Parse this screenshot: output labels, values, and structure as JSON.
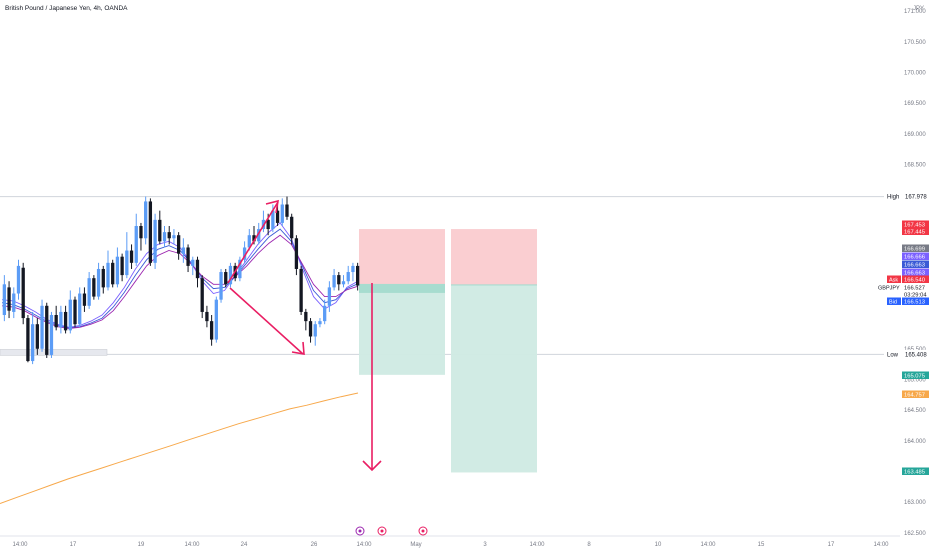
{
  "header": {
    "title": "British Pound / Japanese Yen, 4h, OANDA"
  },
  "currency": "JPY",
  "colors": {
    "bull": "#5b9cf6",
    "bear": "#131722",
    "ma1": "#7b61ff",
    "ma2": "#3a5ad6",
    "ma3": "#9c27b0",
    "ma_long": "#f7a84a",
    "arrow": "#e91e63",
    "stop_zone": "#f9c9cc",
    "target_zone": "#cfeae3",
    "entry_band": "#a7dccf",
    "grid_line": "#d1d4dc",
    "axis_text": "#787b86"
  },
  "price_axis": {
    "ticks": [
      "171.000",
      "170.500",
      "170.000",
      "169.500",
      "169.000",
      "168.500",
      "165.500",
      "165.000",
      "164.500",
      "164.000",
      "163.500",
      "163.000",
      "162.500"
    ]
  },
  "time_axis": {
    "ticks": [
      "14:00",
      "17",
      "19",
      "14:00",
      "24",
      "26",
      "14:00",
      "May",
      "3",
      "14:00",
      "8",
      "10",
      "14:00",
      "15",
      "17",
      "14:00"
    ]
  },
  "levels": {
    "high": {
      "label": "High",
      "value": "167.978"
    },
    "low": {
      "label": "Low",
      "value": "165.408"
    }
  },
  "price_labels": [
    {
      "text": "167.453",
      "bg": "#f23645",
      "fg": "#ffffff"
    },
    {
      "text": "167.445",
      "bg": "#f23645",
      "fg": "#ffffff"
    },
    {
      "text": "166.699",
      "bg": "#787b86",
      "fg": "#ffffff"
    },
    {
      "text": "166.666",
      "bg": "#7b61ff",
      "fg": "#ffffff"
    },
    {
      "text": "166.663",
      "bg": "#3a5ad6",
      "fg": "#ffffff"
    },
    {
      "text": "166.663",
      "bg": "#7b61ff",
      "fg": "#ffffff"
    },
    {
      "text": "166.540",
      "bg": "#f23645",
      "fg": "#ffffff"
    },
    {
      "text": "166.527",
      "bg": "#ffffff",
      "fg": "#131722"
    },
    {
      "text": "03:29:04",
      "bg": "#ffffff",
      "fg": "#131722"
    },
    {
      "text": "166.513",
      "bg": "#2962ff",
      "fg": "#ffffff"
    },
    {
      "text": "165.075",
      "bg": "#26a69a",
      "fg": "#ffffff"
    },
    {
      "text": "164.757",
      "bg": "#f7a84a",
      "fg": "#ffffff"
    },
    {
      "text": "163.485",
      "bg": "#26a69a",
      "fg": "#ffffff"
    }
  ],
  "tags": {
    "ask": "Ask",
    "bid": "Bid",
    "symbol": "GBPJPY"
  },
  "chart_data": {
    "type": "candlestick",
    "title": "British Pound / Japanese Yen, 4h, OANDA",
    "symbol": "GBPJPY",
    "timeframe": "4h",
    "y_unit": "JPY",
    "ylim": [
      162.45,
      171.1
    ],
    "x_tick_labels": [
      "14:00",
      "17",
      "19",
      "14:00",
      "24",
      "26",
      "14:00",
      "May",
      "3",
      "14:00",
      "8",
      "10",
      "14:00",
      "15",
      "17",
      "14:00"
    ],
    "candles": [
      [
        166.05,
        166.55,
        166.7,
        165.95
      ],
      [
        166.5,
        166.12,
        166.6,
        166.0
      ],
      [
        166.1,
        166.4,
        166.5,
        166.0
      ],
      [
        166.4,
        166.85,
        166.95,
        166.3
      ],
      [
        166.82,
        166.0,
        166.9,
        165.9
      ],
      [
        166.0,
        165.3,
        166.05,
        165.28
      ],
      [
        165.3,
        165.9,
        166.1,
        165.25
      ],
      [
        165.9,
        165.5,
        166.0,
        165.4
      ],
      [
        165.5,
        166.2,
        166.3,
        165.45
      ],
      [
        166.2,
        165.4,
        166.25,
        165.35
      ],
      [
        165.4,
        166.05,
        166.1,
        165.35
      ],
      [
        166.05,
        165.85,
        166.2,
        165.8
      ],
      [
        165.85,
        166.1,
        166.2,
        165.75
      ],
      [
        166.1,
        165.8,
        166.2,
        165.75
      ],
      [
        165.8,
        166.3,
        166.45,
        165.75
      ],
      [
        166.3,
        165.9,
        166.35,
        165.85
      ],
      [
        165.9,
        166.4,
        166.5,
        165.85
      ],
      [
        166.4,
        166.2,
        166.5,
        166.1
      ],
      [
        166.2,
        166.65,
        166.75,
        166.15
      ],
      [
        166.65,
        166.35,
        166.7,
        166.3
      ],
      [
        166.35,
        166.8,
        166.9,
        166.3
      ],
      [
        166.8,
        166.5,
        166.85,
        166.4
      ],
      [
        166.5,
        166.9,
        167.1,
        166.45
      ],
      [
        166.9,
        166.55,
        166.95,
        166.5
      ],
      [
        166.55,
        167.0,
        167.15,
        166.5
      ],
      [
        167.0,
        166.7,
        167.05,
        166.6
      ],
      [
        166.7,
        167.1,
        167.4,
        166.65
      ],
      [
        167.1,
        166.9,
        167.2,
        166.8
      ],
      [
        166.9,
        167.5,
        167.7,
        166.85
      ],
      [
        167.5,
        167.3,
        167.55,
        167.1
      ],
      [
        167.3,
        167.9,
        167.98,
        167.2
      ],
      [
        167.9,
        166.9,
        167.95,
        166.85
      ],
      [
        166.9,
        167.6,
        167.7,
        166.8
      ],
      [
        167.6,
        167.25,
        167.75,
        167.2
      ],
      [
        167.25,
        167.4,
        167.5,
        167.15
      ],
      [
        167.4,
        167.3,
        167.5,
        167.2
      ],
      [
        167.3,
        167.35,
        167.45,
        167.2
      ],
      [
        167.35,
        167.05,
        167.4,
        166.95
      ],
      [
        167.05,
        167.15,
        167.3,
        166.9
      ],
      [
        167.15,
        166.85,
        167.2,
        166.75
      ],
      [
        166.85,
        166.95,
        167.0,
        166.7
      ],
      [
        166.95,
        166.65,
        167.0,
        166.5
      ],
      [
        166.65,
        166.1,
        166.7,
        166.0
      ],
      [
        166.1,
        165.95,
        166.2,
        165.85
      ],
      [
        165.95,
        165.65,
        166.05,
        165.55
      ],
      [
        165.65,
        166.3,
        166.35,
        165.6
      ],
      [
        166.3,
        166.75,
        166.8,
        166.25
      ],
      [
        166.75,
        166.55,
        166.8,
        166.5
      ],
      [
        166.55,
        166.85,
        166.9,
        166.5
      ],
      [
        166.85,
        166.65,
        166.9,
        166.6
      ],
      [
        166.65,
        166.95,
        167.0,
        166.6
      ],
      [
        166.95,
        167.15,
        167.25,
        166.9
      ],
      [
        167.15,
        167.35,
        167.45,
        167.1
      ],
      [
        167.35,
        167.25,
        167.5,
        167.2
      ],
      [
        167.25,
        167.45,
        167.55,
        167.2
      ],
      [
        167.45,
        167.6,
        167.75,
        167.4
      ],
      [
        167.6,
        167.45,
        167.7,
        167.35
      ],
      [
        167.45,
        167.75,
        167.85,
        167.4
      ],
      [
        167.75,
        167.55,
        167.85,
        167.5
      ],
      [
        167.55,
        167.85,
        167.95,
        167.5
      ],
      [
        167.85,
        167.65,
        167.98,
        167.6
      ],
      [
        167.65,
        167.3,
        167.7,
        167.2
      ],
      [
        167.3,
        166.8,
        167.35,
        166.7
      ],
      [
        166.8,
        166.1,
        166.85,
        166.05
      ],
      [
        166.1,
        165.95,
        166.15,
        165.8
      ],
      [
        165.95,
        165.7,
        166.0,
        165.6
      ],
      [
        165.7,
        165.9,
        165.95,
        165.55
      ],
      [
        165.9,
        165.95,
        166.0,
        165.85
      ],
      [
        165.95,
        166.2,
        166.3,
        165.9
      ],
      [
        166.2,
        166.5,
        166.6,
        166.1
      ],
      [
        166.5,
        166.7,
        166.8,
        166.45
      ],
      [
        166.7,
        166.55,
        166.75,
        166.45
      ],
      [
        166.55,
        166.6,
        166.7,
        166.5
      ],
      [
        166.6,
        166.75,
        166.85,
        166.55
      ],
      [
        166.75,
        166.85,
        166.9,
        166.6
      ],
      [
        166.85,
        166.53,
        166.9,
        166.45
      ]
    ],
    "moving_averages": [
      {
        "points": [
          166.3,
          166.28,
          166.2,
          166.1,
          165.98,
          165.9,
          165.85,
          165.88,
          165.95,
          166.05,
          166.25,
          166.5,
          166.8,
          167.05,
          167.2,
          167.25,
          167.15,
          166.9,
          166.6,
          166.4,
          166.45,
          166.7,
          166.95,
          167.2,
          167.4,
          167.55,
          167.3,
          166.8,
          166.35,
          166.15,
          166.25,
          166.5,
          166.6
        ]
      },
      {
        "points": [
          166.25,
          166.22,
          166.15,
          166.05,
          165.95,
          165.88,
          165.84,
          165.86,
          165.92,
          166.0,
          166.18,
          166.42,
          166.7,
          166.95,
          167.12,
          167.18,
          167.1,
          166.9,
          166.65,
          166.48,
          166.5,
          166.68,
          166.9,
          167.12,
          167.32,
          167.45,
          167.25,
          166.85,
          166.45,
          166.25,
          166.3,
          166.48,
          166.56
        ]
      },
      {
        "points": [
          166.2,
          166.18,
          166.12,
          166.02,
          165.93,
          165.86,
          165.83,
          165.85,
          165.9,
          165.97,
          166.12,
          166.35,
          166.6,
          166.85,
          167.02,
          167.1,
          167.05,
          166.88,
          166.68,
          166.55,
          166.55,
          166.68,
          166.85,
          167.05,
          167.22,
          167.35,
          167.2,
          166.88,
          166.55,
          166.35,
          166.35,
          166.46,
          166.52
        ]
      }
    ],
    "long_moving_average": [
      162.98,
      163.08,
      163.18,
      163.28,
      163.38,
      163.47,
      163.56,
      163.65,
      163.74,
      163.83,
      163.92,
      164.01,
      164.1,
      164.19,
      164.28,
      164.36,
      164.44,
      164.52,
      164.58,
      164.65,
      164.72,
      164.78
    ],
    "position_1": {
      "entry": 166.54,
      "stop": 167.45,
      "target": 165.075
    },
    "position_2": {
      "entry": 166.54,
      "stop": 167.45,
      "target": 163.485
    },
    "high": 167.978,
    "low": 165.408,
    "ask": 166.54,
    "bid": 166.513,
    "last": 166.527
  }
}
